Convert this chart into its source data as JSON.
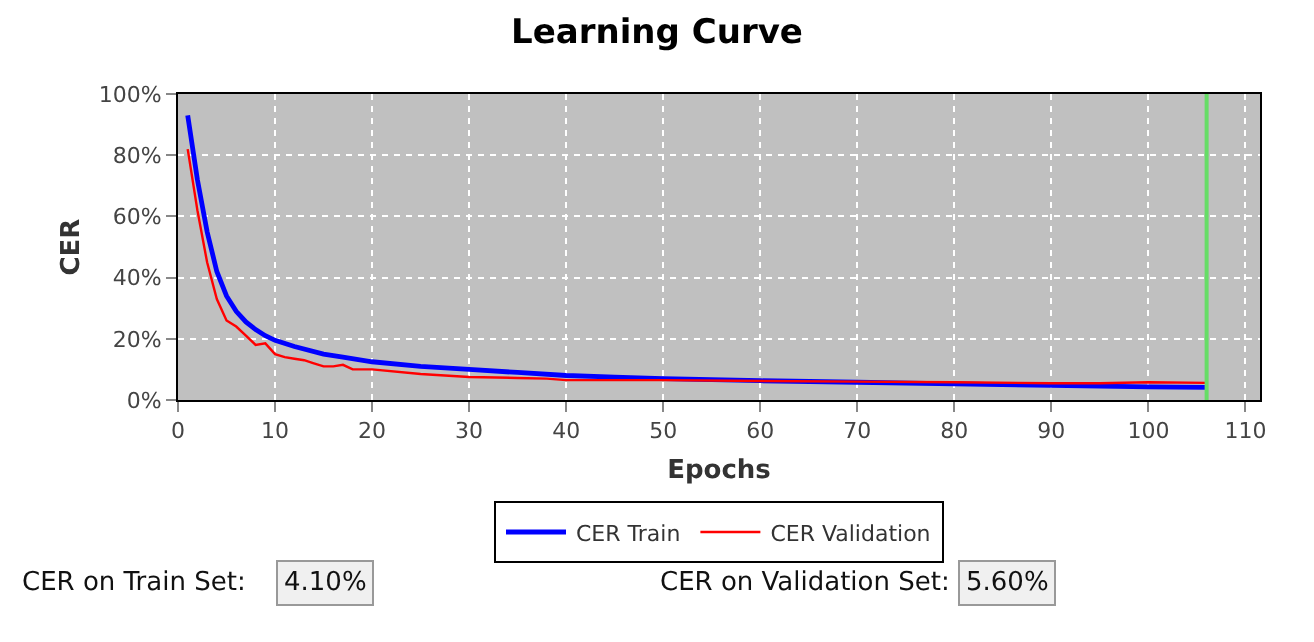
{
  "chart_data": {
    "type": "line",
    "title": "Learning Curve",
    "xlabel": "Epochs",
    "ylabel": "CER",
    "xlim": [
      0,
      111.5
    ],
    "xticks": [
      0,
      10,
      20,
      30,
      40,
      50,
      60,
      70,
      80,
      90,
      100,
      110
    ],
    "ylim": [
      0,
      100
    ],
    "yticks": [
      {
        "value": 0,
        "label": "0%"
      },
      {
        "value": 20,
        "label": "20%"
      },
      {
        "value": 40,
        "label": "40%"
      },
      {
        "value": 60,
        "label": "60%"
      },
      {
        "value": 80,
        "label": "80%"
      },
      {
        "value": 100,
        "label": "100%"
      }
    ],
    "grid": true,
    "legend": "bottom",
    "marker": "none",
    "line_style": "solid",
    "series": [
      {
        "name": "CER Train",
        "color": "#0000ff",
        "x": [
          1,
          2,
          3,
          4,
          5,
          6,
          7,
          8,
          9,
          10,
          12,
          15,
          17,
          20,
          25,
          30,
          35,
          40,
          45,
          50,
          60,
          70,
          80,
          90,
          100,
          106
        ],
        "values": [
          93,
          72,
          55,
          42,
          34,
          29,
          25.5,
          23,
          21,
          19.5,
          17.5,
          15,
          14,
          12.5,
          11,
          10,
          9,
          8,
          7.5,
          7,
          6.3,
          5.8,
          5.3,
          4.8,
          4.3,
          4.1
        ]
      },
      {
        "name": "CER Validation",
        "color": "#ff0000",
        "x": [
          1,
          2,
          3,
          4,
          5,
          6,
          7,
          8,
          9,
          10,
          11,
          12,
          13,
          14,
          15,
          16,
          17,
          18,
          20,
          25,
          30,
          35,
          38,
          40,
          45,
          50,
          60,
          70,
          80,
          90,
          95,
          100,
          106
        ],
        "values": [
          82,
          62,
          45,
          33,
          26,
          24,
          21,
          18,
          18.5,
          15,
          14,
          13.5,
          13,
          12,
          11,
          11,
          11.5,
          10,
          10,
          8.5,
          7.5,
          7.2,
          7,
          6.5,
          6.5,
          6.5,
          6.2,
          6,
          5.8,
          5.5,
          5.5,
          5.8,
          5.6
        ]
      }
    ],
    "ref_lines": [
      {
        "axis": "x",
        "value": 106,
        "color": "#66dd66"
      }
    ],
    "annotations": [
      "CER on Train Set:",
      "4.10%",
      "CER on Validation Set:",
      "5.60%"
    ]
  }
}
